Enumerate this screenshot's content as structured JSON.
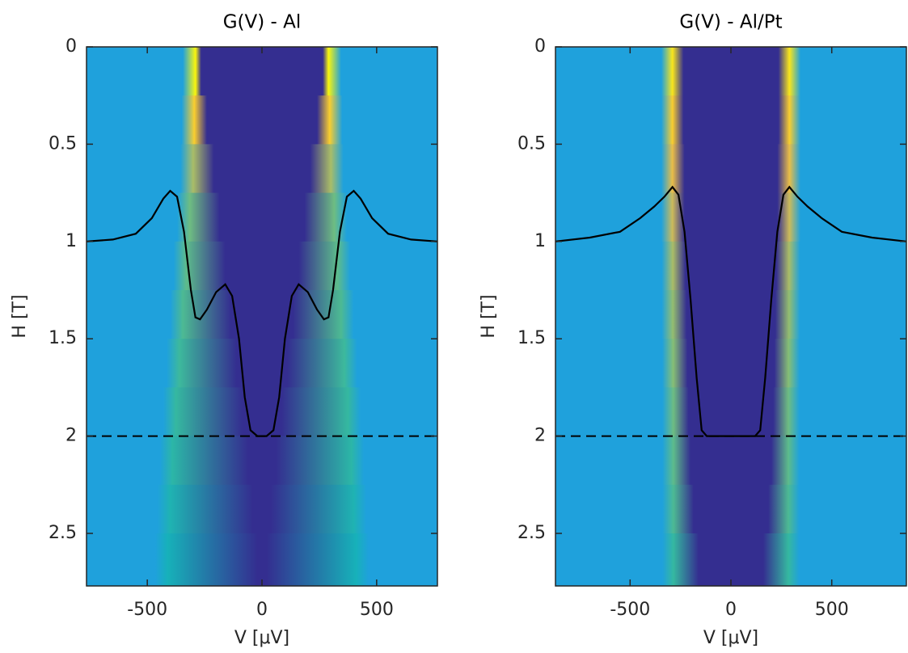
{
  "chart_data": [
    {
      "type": "heatmap",
      "title": "G(V) - Al",
      "x_label": "V [μV]",
      "y_label": "H [T]",
      "xlim": [
        -765,
        765
      ],
      "ylim": [
        0,
        2.77
      ],
      "xticks": [
        -500,
        0,
        500
      ],
      "yticks": [
        0,
        0.5,
        1,
        1.5,
        2,
        2.5
      ],
      "y_reversed": true,
      "heatmap": {
        "H": [
          0,
          0.25,
          0.5,
          0.75,
          1,
          1.25,
          1.5,
          1.75,
          2,
          2.25,
          2.5
        ],
        "gap": [
          265,
          240,
          210,
          185,
          160,
          135,
          110,
          85,
          60,
          40,
          20
        ],
        "ridge": [
          290,
          295,
          300,
          315,
          330,
          345,
          360,
          375,
          390,
          400,
          410
        ],
        "peak": [
          1.0,
          0.95,
          0.8,
          0.72,
          0.7,
          0.68,
          0.66,
          0.65,
          0.63,
          0.6,
          0.58
        ]
      },
      "curve": {
        "color": "#000000",
        "x": [
          -765,
          -650,
          -550,
          -480,
          -430,
          -400,
          -370,
          -340,
          -310,
          -290,
          -270,
          -240,
          -200,
          -160,
          -130,
          -100,
          -75,
          -50,
          -20,
          0,
          20,
          50,
          75,
          100,
          130,
          160,
          200,
          240,
          270,
          290,
          310,
          340,
          370,
          400,
          430,
          480,
          550,
          650,
          765
        ],
        "y": [
          1.0,
          0.99,
          0.96,
          0.88,
          0.78,
          0.74,
          0.77,
          0.95,
          1.25,
          1.39,
          1.4,
          1.35,
          1.26,
          1.22,
          1.28,
          1.5,
          1.8,
          1.97,
          2.0,
          2.0,
          2.0,
          1.97,
          1.8,
          1.5,
          1.28,
          1.22,
          1.26,
          1.35,
          1.4,
          1.39,
          1.25,
          0.95,
          0.77,
          0.74,
          0.78,
          0.88,
          0.96,
          0.99,
          1.0
        ]
      },
      "hline": 2
    },
    {
      "type": "heatmap",
      "title": "G(V) - Al/Pt",
      "x_label": "V [μV]",
      "y_label": "H [T]",
      "xlim": [
        -870,
        870
      ],
      "ylim": [
        0,
        2.77
      ],
      "xticks": [
        -500,
        0,
        500
      ],
      "yticks": [
        0,
        0.5,
        1,
        1.5,
        2,
        2.5
      ],
      "y_reversed": true,
      "heatmap": {
        "H": [
          0,
          0.25,
          0.5,
          0.75,
          1,
          1.25,
          1.5,
          1.75,
          2,
          2.25,
          2.5
        ],
        "gap": [
          235,
          235,
          230,
          230,
          225,
          220,
          215,
          210,
          200,
          185,
          160
        ],
        "ridge": [
          290,
          290,
          290,
          290,
          288,
          288,
          286,
          285,
          285,
          285,
          285
        ],
        "peak": [
          0.98,
          0.95,
          0.9,
          0.85,
          0.8,
          0.77,
          0.75,
          0.72,
          0.7,
          0.68,
          0.65
        ]
      },
      "curve": {
        "color": "#000000",
        "x": [
          -870,
          -700,
          -550,
          -450,
          -380,
          -330,
          -290,
          -260,
          -230,
          -200,
          -170,
          -145,
          -120,
          0,
          120,
          145,
          170,
          200,
          230,
          260,
          290,
          330,
          380,
          450,
          550,
          700,
          870
        ],
        "y": [
          1.0,
          0.98,
          0.95,
          0.88,
          0.82,
          0.77,
          0.72,
          0.76,
          0.95,
          1.3,
          1.7,
          1.97,
          2.0,
          2.0,
          2.0,
          1.97,
          1.7,
          1.3,
          0.95,
          0.76,
          0.72,
          0.77,
          0.82,
          0.88,
          0.95,
          0.98,
          1.0
        ]
      },
      "hline": 2
    }
  ]
}
